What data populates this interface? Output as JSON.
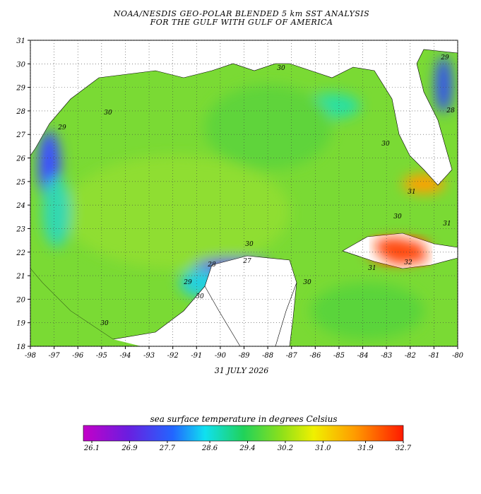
{
  "header": {
    "title": [
      "NOAA/NESDIS GEO-POLAR BLENDED 5 km SST ANALYSIS",
      "FOR THE GULF WITH GULF OF AMERICA"
    ],
    "date": "31 JULY 2026"
  },
  "map": {
    "xticks": [
      -98,
      -97,
      -96,
      -95,
      -94,
      -93,
      -92,
      -91,
      -90,
      -89,
      -88,
      -87,
      -86,
      -85,
      -84,
      -83,
      -82,
      -81,
      -80
    ],
    "yticks": [
      31,
      30,
      29,
      28,
      27,
      26,
      25,
      24,
      23,
      22,
      21,
      20,
      19,
      18
    ],
    "contour_labels": [
      30,
      29,
      30,
      30,
      31,
      30,
      31,
      30,
      28,
      27,
      29,
      30,
      30,
      31,
      32,
      30,
      29,
      28
    ]
  },
  "colorbar": {
    "label": "sea surface temperature in degrees Celsius",
    "ticks": [
      26.1,
      26.9,
      27.7,
      28.6,
      29.4,
      30.2,
      {
        "value": 31,
        "label": "31.0"
      },
      31.9,
      32.7
    ]
  }
}
